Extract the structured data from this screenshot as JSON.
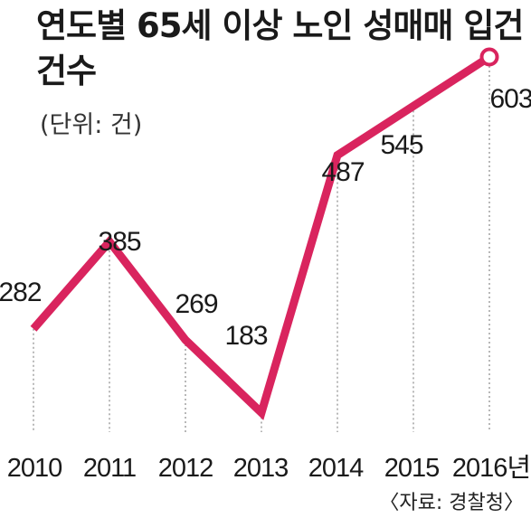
{
  "title": "연도별 65세 이상 노인 성매매 입건 건수",
  "unit_note": "(단위: 건)",
  "source": "〈자료: 경찰청〉",
  "colors": {
    "line": "#d9245e",
    "text": "#1a1a1a",
    "guide": "#888888"
  },
  "chart_data": {
    "type": "line",
    "title": "연도별 65세 이상 노인 성매매 입건 건수",
    "ylabel": "(단위: 건)",
    "xlabel": "",
    "categories": [
      "2010",
      "2011",
      "2012",
      "2013",
      "2014",
      "2015",
      "2016년"
    ],
    "values": [
      282,
      385,
      269,
      183,
      487,
      545,
      603
    ],
    "highlight_last": true,
    "grid": false,
    "legend": "none"
  }
}
